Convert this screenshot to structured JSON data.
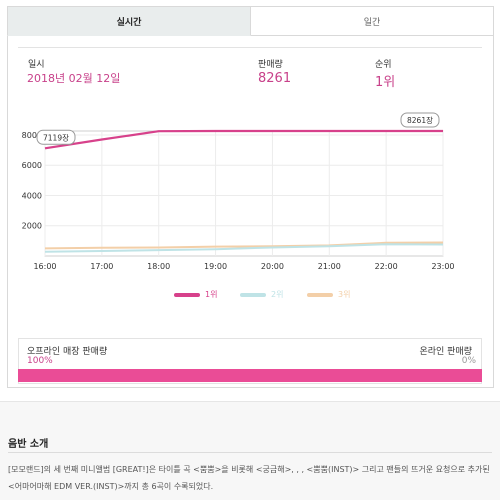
{
  "tabs": [
    {
      "label": "실시간",
      "active": true
    },
    {
      "label": "일간",
      "active": false
    }
  ],
  "stats": {
    "date_label": "일시",
    "date_value": "2018년 02월 12일",
    "sales_label": "판매량",
    "sales_value": "8261",
    "rank_label": "순위",
    "rank_value": "1위"
  },
  "chart_data": {
    "type": "line",
    "x": [
      "16:00",
      "17:00",
      "18:00",
      "19:00",
      "20:00",
      "21:00",
      "22:00",
      "23:00"
    ],
    "y_ticks": [
      "8000",
      "6000",
      "4000",
      "2000"
    ],
    "ylim": [
      0,
      8261
    ],
    "series": [
      {
        "name": "1위",
        "color": "#d7418b",
        "values": [
          7119,
          7700,
          8250,
          8261,
          8261,
          8261,
          8261,
          8261
        ]
      },
      {
        "name": "2위",
        "color": "#bfe3e6",
        "values": [
          280,
          330,
          390,
          450,
          560,
          650,
          780,
          760
        ]
      },
      {
        "name": "3위",
        "color": "#f3cfa8",
        "values": [
          500,
          540,
          560,
          620,
          650,
          700,
          870,
          890
        ]
      }
    ],
    "callouts": [
      {
        "label": "7119장",
        "series": 0,
        "index": 0
      },
      {
        "label": "8261장",
        "series": 0,
        "index": 7
      }
    ],
    "grid": true
  },
  "sales_split": {
    "offline_label": "오프라인 매장 판매량",
    "offline_pct": "100%",
    "online_label": "온라인 판매량",
    "online_pct": "0%",
    "offline_fraction": 1.0
  },
  "album": {
    "title": "음반 소개",
    "description": "[모모랜드]의 세 번째 미니앨범 [GREAT!]은 타이틀 곡 <뿜뿜>을 비롯해 <궁금해>, , , <뿜뿜(INST)> 그리고 팬들의 뜨거운 요청으로 추가된 <어마어마해 EDM VER.(INST)>까지 총 6곡이 수록되었다."
  }
}
